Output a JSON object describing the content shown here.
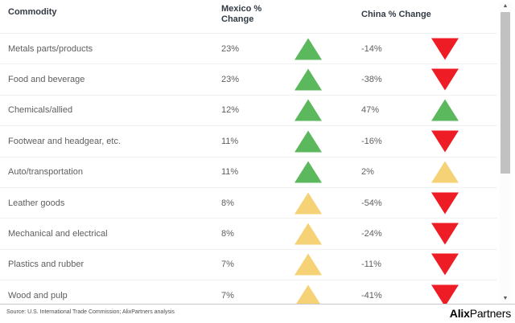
{
  "chart_data": {
    "type": "table",
    "columns": [
      "Commodity",
      "Mexico % Change",
      "China % Change"
    ],
    "rows": [
      {
        "commodity": "Metals parts/products",
        "mexico_pct": 23,
        "china_pct": -14
      },
      {
        "commodity": "Food and beverage",
        "mexico_pct": 23,
        "china_pct": -38
      },
      {
        "commodity": "Chemicals/allied",
        "mexico_pct": 12,
        "china_pct": 47
      },
      {
        "commodity": "Footwear and headgear, etc.",
        "mexico_pct": 11,
        "china_pct": -16
      },
      {
        "commodity": "Auto/transportation",
        "mexico_pct": 11,
        "china_pct": 2
      },
      {
        "commodity": "Leather goods",
        "mexico_pct": 8,
        "china_pct": -54
      },
      {
        "commodity": "Mechanical and electrical",
        "mexico_pct": 8,
        "china_pct": -24
      },
      {
        "commodity": "Plastics and rubber",
        "mexico_pct": 7,
        "china_pct": -11
      },
      {
        "commodity": "Wood and pulp",
        "mexico_pct": 7,
        "china_pct": -41
      }
    ],
    "indicator_encoding": {
      "green_up_triangle": "large increase",
      "yellow_up_triangle": "small/moderate increase",
      "red_down_triangle": "decrease"
    },
    "source": "Source: U.S. International Trade Commission; AlixPartners analysis"
  },
  "table": {
    "headers": {
      "commodity": "Commodity",
      "mexico": "Mexico %\nChange",
      "china": "China % Change"
    },
    "rows": [
      {
        "name": "Metals parts/products",
        "mexico_value": "23%",
        "mexico_tri": "tri up green",
        "china_value": "-14%",
        "china_tri": "tri down red"
      },
      {
        "name": "Food and beverage",
        "mexico_value": "23%",
        "mexico_tri": "tri up green",
        "china_value": "-38%",
        "china_tri": "tri down red"
      },
      {
        "name": "Chemicals/allied",
        "mexico_value": "12%",
        "mexico_tri": "tri up green",
        "china_value": "47%",
        "china_tri": "tri up green"
      },
      {
        "name": "Footwear and headgear, etc.",
        "mexico_value": "11%",
        "mexico_tri": "tri up green",
        "china_value": "-16%",
        "china_tri": "tri down red"
      },
      {
        "name": "Auto/transportation",
        "mexico_value": "11%",
        "mexico_tri": "tri up green",
        "china_value": "2%",
        "china_tri": "tri up yellow"
      },
      {
        "name": "Leather goods",
        "mexico_value": "8%",
        "mexico_tri": "tri up yellow",
        "china_value": "-54%",
        "china_tri": "tri down red"
      },
      {
        "name": "Mechanical and electrical",
        "mexico_value": "8%",
        "mexico_tri": "tri up yellow",
        "china_value": "-24%",
        "china_tri": "tri down red"
      },
      {
        "name": "Plastics and rubber",
        "mexico_value": "7%",
        "mexico_tri": "tri up yellow",
        "china_value": "-11%",
        "china_tri": "tri down red"
      },
      {
        "name": "Wood and pulp",
        "mexico_value": "7%",
        "mexico_tri": "tri up yellow",
        "china_value": "-41%",
        "china_tri": "tri down red"
      }
    ]
  },
  "footer": {
    "source": "Source: U.S. International Trade Commission; AlixPartners analysis",
    "logo_bold": "Alix",
    "logo_regular": "Partners"
  },
  "scrollbar": {
    "up_glyph": "▲",
    "down_glyph": "▼"
  },
  "colors": {
    "positive_green": "#5cb85c",
    "moderate_yellow": "#f6d276",
    "negative_red": "#ee1c25"
  }
}
